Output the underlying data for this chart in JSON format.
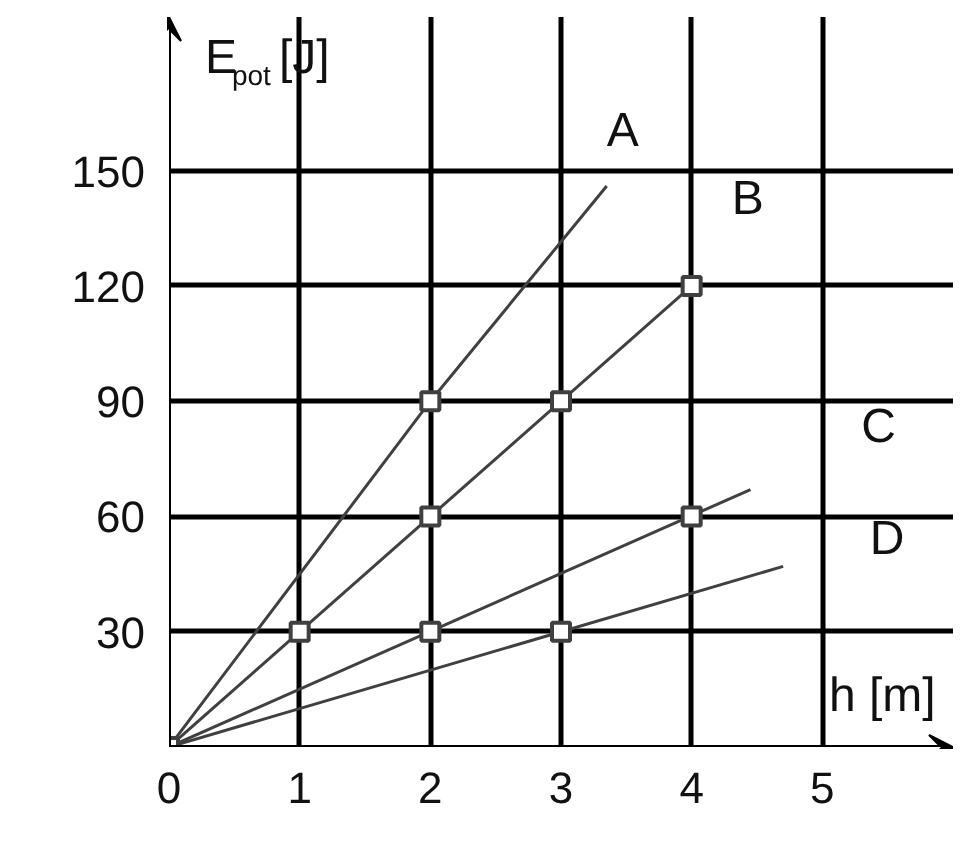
{
  "chart_data": {
    "type": "line",
    "xlabel": "h [m]",
    "ylabel": "E$_{pot}$ [J]",
    "xlim": [
      0,
      6
    ],
    "ylim": [
      0,
      190
    ],
    "xticks": [
      0,
      1,
      2,
      3,
      4,
      5
    ],
    "yticks": [
      30,
      60,
      90,
      120,
      150
    ],
    "grid": true,
    "line_style": "solid",
    "series": [
      {
        "name": "A",
        "color": "#404040",
        "x": [
          0,
          2,
          3.35
        ],
        "values": [
          0,
          90,
          146
        ]
      },
      {
        "name": "B",
        "color": "#404040",
        "x": [
          0,
          4
        ],
        "values": [
          0,
          120
        ]
      },
      {
        "name": "C",
        "color": "#404040",
        "x": [
          0,
          4.45
        ],
        "values": [
          0,
          67
        ]
      },
      {
        "name": "D",
        "color": "#404040",
        "x": [
          0,
          4.7
        ],
        "values": [
          0,
          47
        ]
      },
      {
        "type": "scatter",
        "marker": "square",
        "color": "#404040",
        "x": [
          0,
          1,
          2,
          2,
          2,
          3,
          3,
          4,
          4
        ],
        "values": [
          0,
          30,
          30,
          60,
          90,
          30,
          90,
          60,
          120
        ]
      }
    ]
  }
}
